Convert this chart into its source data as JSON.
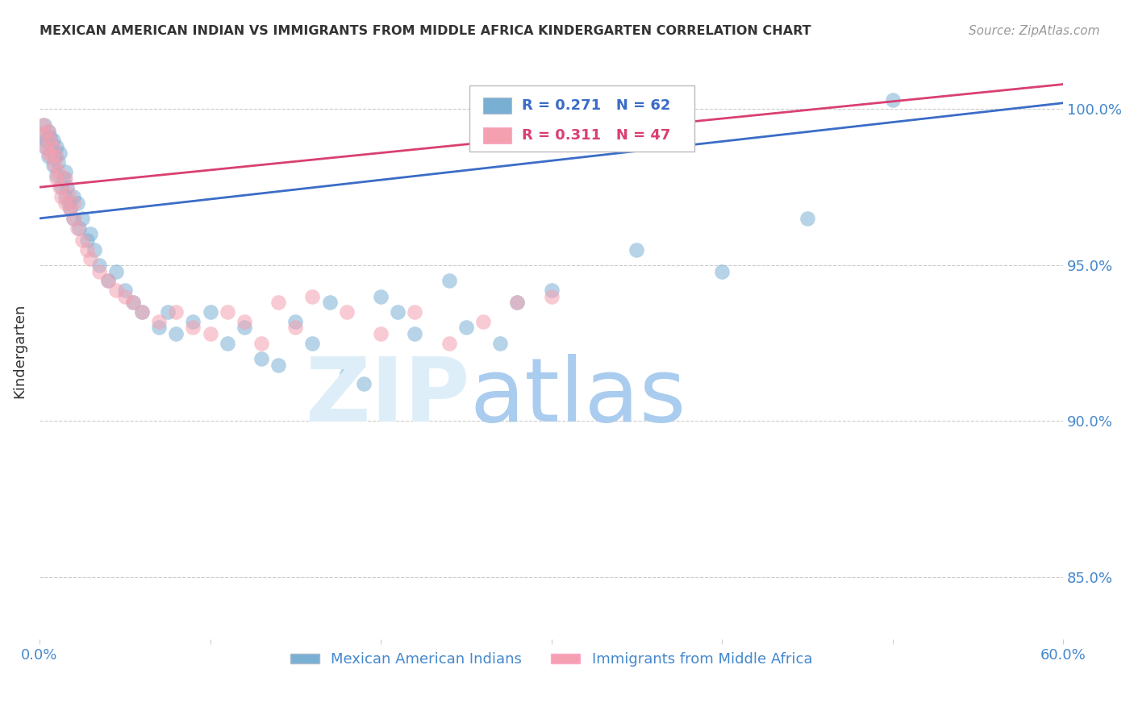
{
  "title": "MEXICAN AMERICAN INDIAN VS IMMIGRANTS FROM MIDDLE AFRICA KINDERGARTEN CORRELATION CHART",
  "source": "Source: ZipAtlas.com",
  "ylabel": "Kindergarten",
  "xlim": [
    0.0,
    60.0
  ],
  "ylim": [
    83.0,
    101.5
  ],
  "yticks": [
    85.0,
    90.0,
    95.0,
    100.0
  ],
  "ytick_labels": [
    "85.0%",
    "90.0%",
    "95.0%",
    "100.0%"
  ],
  "blue_label": "Mexican American Indians",
  "pink_label": "Immigrants from Middle Africa",
  "blue_r": "0.271",
  "blue_n": "62",
  "pink_r": "0.311",
  "pink_n": "47",
  "blue_color": "#7AAFD4",
  "pink_color": "#F4A0B0",
  "blue_line_color": "#3B6CC7",
  "pink_line_color": "#D94070",
  "axis_color": "#4488CC",
  "background_color": "#FFFFFF",
  "blue_scatter_x": [
    0.2,
    0.3,
    0.3,
    0.4,
    0.5,
    0.5,
    0.6,
    0.7,
    0.8,
    0.8,
    0.9,
    1.0,
    1.0,
    1.1,
    1.2,
    1.3,
    1.4,
    1.5,
    1.5,
    1.6,
    1.7,
    1.8,
    2.0,
    2.0,
    2.2,
    2.3,
    2.5,
    2.8,
    3.0,
    3.2,
    3.5,
    4.0,
    4.5,
    5.0,
    5.5,
    6.0,
    7.0,
    7.5,
    8.0,
    9.0,
    10.0,
    11.0,
    12.0,
    13.0,
    14.0,
    15.0,
    16.0,
    17.0,
    18.0,
    19.0,
    20.0,
    21.0,
    22.0,
    24.0,
    25.0,
    27.0,
    28.0,
    30.0,
    35.0,
    40.0,
    45.0,
    50.0
  ],
  "blue_scatter_y": [
    99.2,
    99.5,
    98.8,
    99.0,
    99.3,
    98.5,
    99.1,
    98.7,
    99.0,
    98.2,
    98.5,
    98.8,
    97.9,
    98.3,
    98.6,
    97.5,
    97.8,
    98.0,
    97.2,
    97.5,
    97.0,
    96.8,
    97.2,
    96.5,
    97.0,
    96.2,
    96.5,
    95.8,
    96.0,
    95.5,
    95.0,
    94.5,
    94.8,
    94.2,
    93.8,
    93.5,
    93.0,
    93.5,
    92.8,
    93.2,
    93.5,
    92.5,
    93.0,
    92.0,
    91.8,
    93.2,
    92.5,
    93.8,
    91.5,
    91.2,
    94.0,
    93.5,
    92.8,
    94.5,
    93.0,
    92.5,
    93.8,
    94.2,
    95.5,
    94.8,
    96.5,
    100.3
  ],
  "pink_scatter_x": [
    0.2,
    0.3,
    0.4,
    0.5,
    0.5,
    0.6,
    0.7,
    0.8,
    0.9,
    1.0,
    1.0,
    1.1,
    1.2,
    1.3,
    1.5,
    1.5,
    1.7,
    1.8,
    2.0,
    2.0,
    2.2,
    2.5,
    2.8,
    3.0,
    3.5,
    4.0,
    4.5,
    5.0,
    5.5,
    6.0,
    7.0,
    8.0,
    9.0,
    10.0,
    11.0,
    12.0,
    13.0,
    14.0,
    15.0,
    16.0,
    18.0,
    20.0,
    22.0,
    24.0,
    26.0,
    28.0,
    30.0
  ],
  "pink_scatter_y": [
    99.5,
    99.2,
    98.8,
    99.3,
    98.6,
    99.0,
    98.5,
    98.8,
    98.2,
    98.5,
    97.8,
    98.0,
    97.5,
    97.2,
    97.8,
    97.0,
    97.3,
    96.8,
    97.0,
    96.5,
    96.2,
    95.8,
    95.5,
    95.2,
    94.8,
    94.5,
    94.2,
    94.0,
    93.8,
    93.5,
    93.2,
    93.5,
    93.0,
    92.8,
    93.5,
    93.2,
    92.5,
    93.8,
    93.0,
    94.0,
    93.5,
    92.8,
    93.5,
    92.5,
    93.2,
    93.8,
    94.0
  ],
  "blue_trend_x": [
    0.0,
    60.0
  ],
  "blue_trend_y": [
    96.5,
    100.2
  ],
  "pink_trend_x": [
    0.0,
    60.0
  ],
  "pink_trend_y": [
    97.5,
    100.8
  ]
}
